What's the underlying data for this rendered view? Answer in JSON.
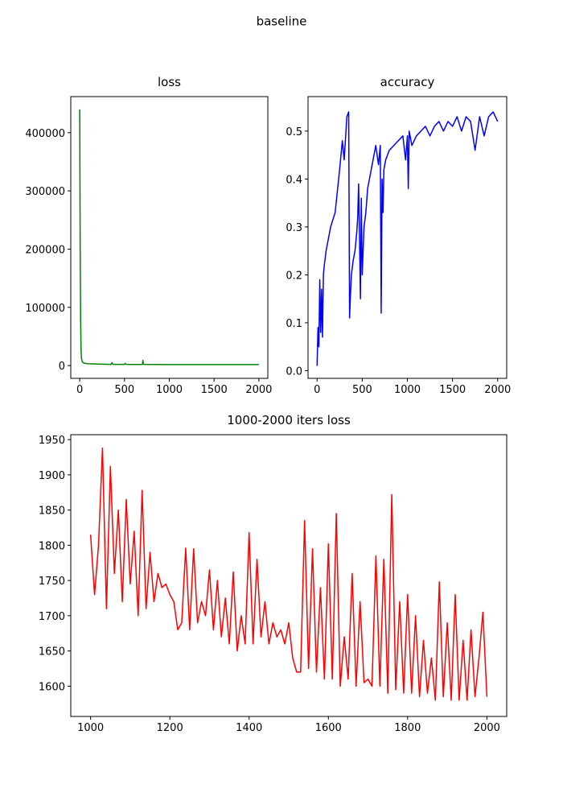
{
  "title": "baseline",
  "chart_data": [
    {
      "type": "line",
      "title": "loss",
      "color": "#008000",
      "x": [
        0,
        5,
        10,
        15,
        20,
        30,
        50,
        100,
        200,
        300,
        350,
        360,
        370,
        400,
        500,
        505,
        520,
        600,
        700,
        705,
        710,
        720,
        800,
        1000,
        1500,
        2000
      ],
      "values": [
        440000,
        200000,
        80000,
        25000,
        12000,
        6000,
        4000,
        3000,
        2500,
        2200,
        2000,
        5000,
        2200,
        2100,
        2000,
        3500,
        2000,
        1900,
        1800,
        9000,
        2500,
        2000,
        1800,
        1750,
        1650,
        1600
      ],
      "xlim": [
        -100,
        2100
      ],
      "ylim": [
        -22000,
        462000
      ],
      "xticks": [
        0,
        500,
        1000,
        1500,
        2000
      ],
      "yticks": [
        0,
        100000,
        200000,
        300000,
        400000
      ]
    },
    {
      "type": "line",
      "title": "accuracy",
      "color": "#0000ff",
      "x": [
        0,
        10,
        20,
        30,
        40,
        50,
        60,
        70,
        80,
        100,
        150,
        200,
        250,
        280,
        300,
        330,
        350,
        360,
        370,
        380,
        400,
        420,
        440,
        450,
        460,
        470,
        480,
        490,
        500,
        520,
        540,
        560,
        600,
        650,
        680,
        700,
        710,
        720,
        730,
        740,
        760,
        800,
        850,
        900,
        950,
        980,
        1000,
        1010,
        1020,
        1050,
        1100,
        1150,
        1200,
        1250,
        1300,
        1350,
        1400,
        1450,
        1500,
        1550,
        1600,
        1650,
        1700,
        1750,
        1800,
        1850,
        1900,
        1950,
        2000
      ],
      "values": [
        0.01,
        0.09,
        0.05,
        0.19,
        0.08,
        0.17,
        0.07,
        0.2,
        0.22,
        0.25,
        0.3,
        0.33,
        0.42,
        0.48,
        0.44,
        0.53,
        0.54,
        0.11,
        0.16,
        0.2,
        0.23,
        0.25,
        0.29,
        0.32,
        0.39,
        0.28,
        0.15,
        0.36,
        0.2,
        0.3,
        0.33,
        0.38,
        0.42,
        0.47,
        0.43,
        0.47,
        0.12,
        0.4,
        0.33,
        0.42,
        0.44,
        0.46,
        0.47,
        0.48,
        0.49,
        0.44,
        0.49,
        0.38,
        0.5,
        0.47,
        0.49,
        0.5,
        0.51,
        0.49,
        0.51,
        0.52,
        0.5,
        0.52,
        0.51,
        0.53,
        0.5,
        0.53,
        0.52,
        0.46,
        0.53,
        0.49,
        0.53,
        0.54,
        0.52
      ],
      "xlim": [
        -100,
        2100
      ],
      "ylim": [
        -0.016,
        0.572
      ],
      "xticks": [
        0,
        500,
        1000,
        1500,
        2000
      ],
      "yticks": [
        {
          "value": 0,
          "label": "0.0"
        },
        0.1,
        0.2,
        0.3,
        0.4,
        0.5
      ]
    },
    {
      "type": "line",
      "title": "1000-2000 iters loss",
      "color": "#ff0000",
      "x": [
        1000,
        1010,
        1020,
        1030,
        1040,
        1050,
        1060,
        1070,
        1080,
        1090,
        1100,
        1110,
        1120,
        1130,
        1140,
        1150,
        1160,
        1170,
        1180,
        1190,
        1200,
        1210,
        1220,
        1230,
        1240,
        1250,
        1260,
        1270,
        1280,
        1290,
        1300,
        1310,
        1320,
        1330,
        1340,
        1350,
        1360,
        1370,
        1380,
        1390,
        1400,
        1410,
        1420,
        1430,
        1440,
        1450,
        1460,
        1470,
        1480,
        1490,
        1500,
        1510,
        1520,
        1530,
        1540,
        1550,
        1560,
        1570,
        1580,
        1590,
        1600,
        1610,
        1620,
        1630,
        1640,
        1650,
        1660,
        1670,
        1680,
        1690,
        1700,
        1710,
        1720,
        1730,
        1740,
        1750,
        1760,
        1770,
        1780,
        1790,
        1800,
        1810,
        1820,
        1830,
        1840,
        1850,
        1860,
        1870,
        1880,
        1890,
        1900,
        1910,
        1920,
        1930,
        1940,
        1950,
        1960,
        1970,
        1980,
        1990,
        2000
      ],
      "values": [
        1815,
        1730,
        1800,
        1938,
        1710,
        1912,
        1760,
        1850,
        1720,
        1865,
        1745,
        1820,
        1700,
        1878,
        1710,
        1790,
        1720,
        1760,
        1740,
        1745,
        1730,
        1720,
        1680,
        1690,
        1796,
        1680,
        1795,
        1690,
        1720,
        1700,
        1765,
        1680,
        1750,
        1670,
        1725,
        1660,
        1762,
        1650,
        1700,
        1660,
        1818,
        1660,
        1780,
        1670,
        1720,
        1660,
        1690,
        1670,
        1680,
        1660,
        1690,
        1640,
        1620,
        1620,
        1835,
        1625,
        1795,
        1620,
        1740,
        1610,
        1802,
        1610,
        1845,
        1600,
        1670,
        1610,
        1760,
        1600,
        1720,
        1605,
        1610,
        1600,
        1785,
        1600,
        1780,
        1590,
        1872,
        1595,
        1720,
        1590,
        1730,
        1590,
        1700,
        1585,
        1665,
        1590,
        1640,
        1580,
        1748,
        1585,
        1690,
        1580,
        1730,
        1580,
        1665,
        1580,
        1680,
        1585,
        1640,
        1705,
        1585
      ],
      "xlim": [
        950,
        2050
      ],
      "ylim": [
        1557,
        1957
      ],
      "xticks": [
        1000,
        1200,
        1400,
        1600,
        1800,
        2000
      ],
      "yticks": [
        1600,
        1650,
        1700,
        1750,
        1800,
        1850,
        1900,
        1950
      ]
    }
  ]
}
